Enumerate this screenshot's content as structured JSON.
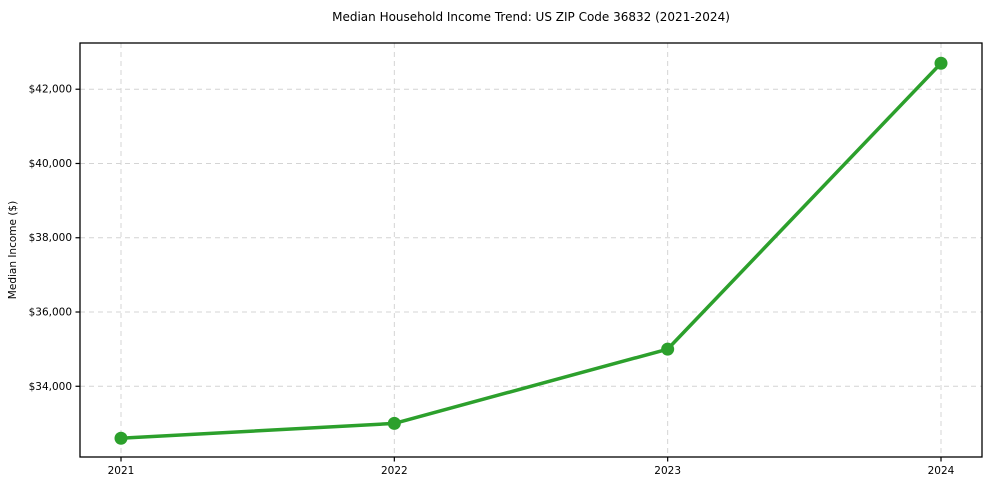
{
  "chart_data": {
    "type": "line",
    "title": "Median Household Income Trend: US ZIP Code 36832 (2021-2024)",
    "xlabel": "",
    "ylabel": "Median Income ($)",
    "x": [
      2021,
      2022,
      2023,
      2024
    ],
    "x_tick_labels": [
      "2021",
      "2022",
      "2023",
      "2024"
    ],
    "series": [
      {
        "name": "Median Household Income",
        "values": [
          32600,
          33000,
          35000,
          42700
        ]
      }
    ],
    "yticks": [
      34000,
      36000,
      38000,
      40000,
      42000
    ],
    "ytick_labels": [
      "$34,000",
      "$36,000",
      "$38,000",
      "$40,000",
      "$42,000"
    ],
    "xlim": [
      2020.85,
      2024.15
    ],
    "ylim": [
      32095,
      43245
    ],
    "grid": true,
    "grid_style": "dashed",
    "legend": "none",
    "colors": {
      "line": "#2ca02c",
      "marker": "#2ca02c",
      "grid": "#d4d4d4",
      "spine": "#000000",
      "background": "#ffffff",
      "text": "#000000"
    }
  }
}
